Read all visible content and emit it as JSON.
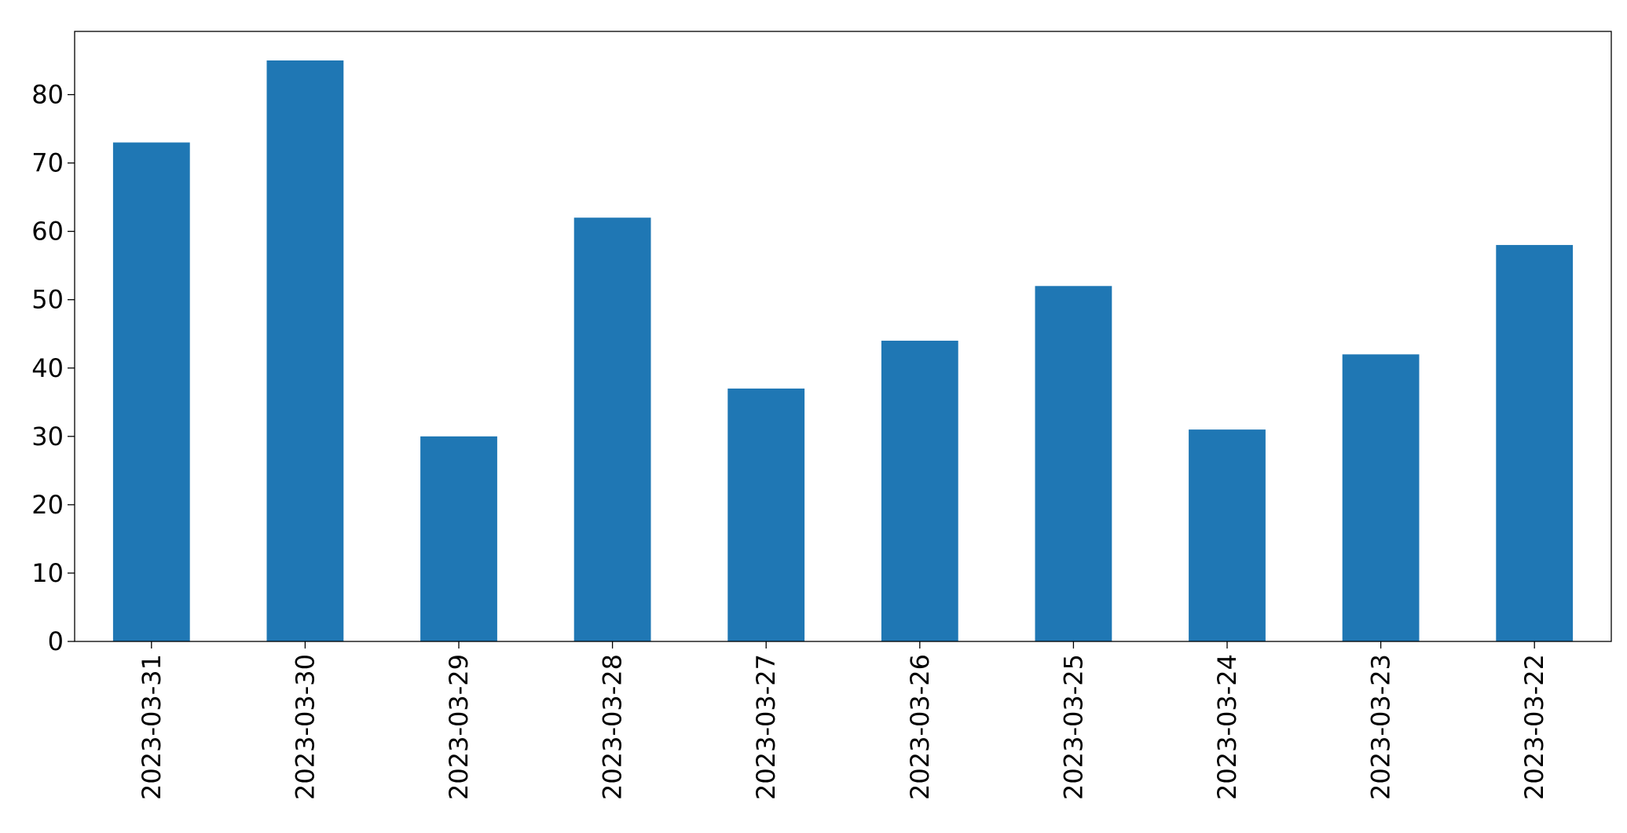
{
  "chart_data": {
    "type": "bar",
    "categories": [
      "2023-03-31",
      "2023-03-30",
      "2023-03-29",
      "2023-03-28",
      "2023-03-27",
      "2023-03-26",
      "2023-03-25",
      "2023-03-24",
      "2023-03-23",
      "2023-03-22"
    ],
    "values": [
      73,
      85,
      30,
      62,
      37,
      44,
      52,
      31,
      42,
      58
    ],
    "color": "#1f77b4",
    "ylim": [
      0,
      89.25
    ],
    "yticks": [
      0,
      10,
      20,
      30,
      40,
      50,
      60,
      70,
      80
    ],
    "grid": false
  }
}
